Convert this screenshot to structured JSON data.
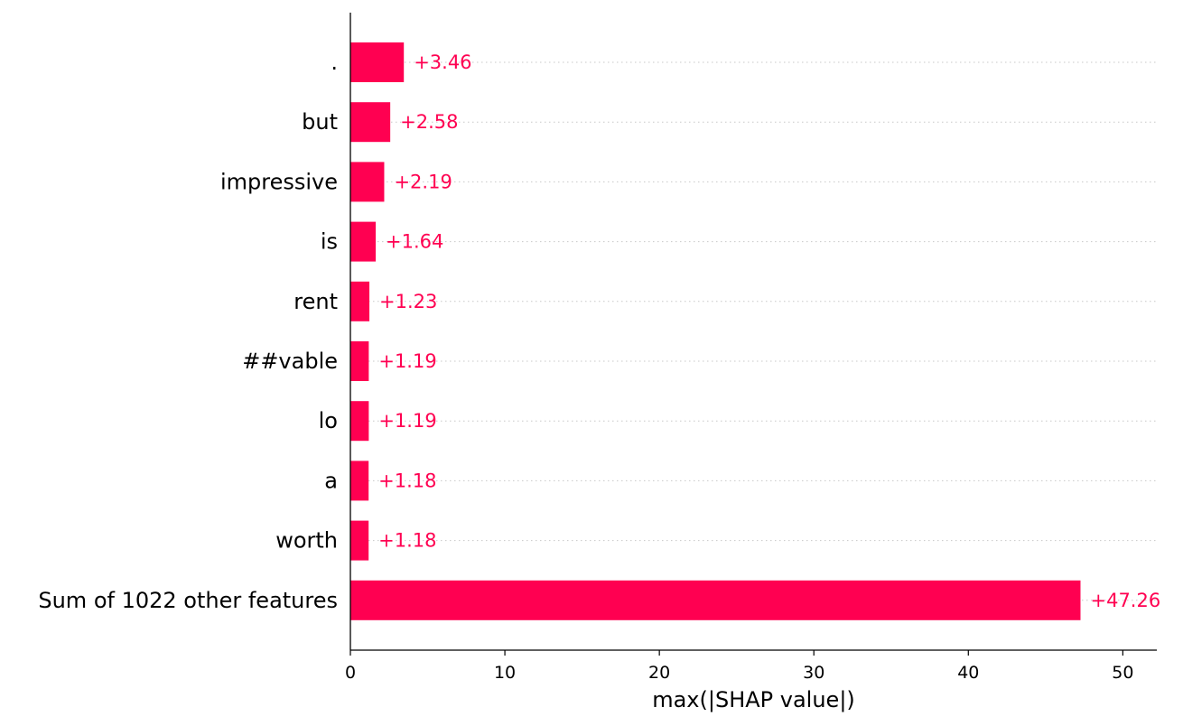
{
  "chart_data": {
    "type": "bar",
    "orientation": "horizontal",
    "categories": [
      ".",
      "but",
      "impressive",
      "is",
      "rent",
      "##vable",
      "lo",
      "a",
      "worth",
      "Sum of 1022 other features"
    ],
    "values": [
      3.46,
      2.58,
      2.19,
      1.64,
      1.23,
      1.19,
      1.19,
      1.18,
      1.18,
      47.26
    ],
    "value_labels": [
      "+3.46",
      "+2.58",
      "+2.19",
      "+1.64",
      "+1.23",
      "+1.19",
      "+1.19",
      "+1.18",
      "+1.18",
      "+47.26"
    ],
    "xlabel": "max(|SHAP value|)",
    "xlim": [
      0,
      52.2
    ],
    "xticks": [
      0,
      10,
      20,
      30,
      40,
      50
    ],
    "grid": "dotted horizontal guide per bar",
    "colors": {
      "bar": "#ff0051",
      "value_text": "#ff0051",
      "guide": "#c8c8c8",
      "axis": "#000000"
    }
  }
}
